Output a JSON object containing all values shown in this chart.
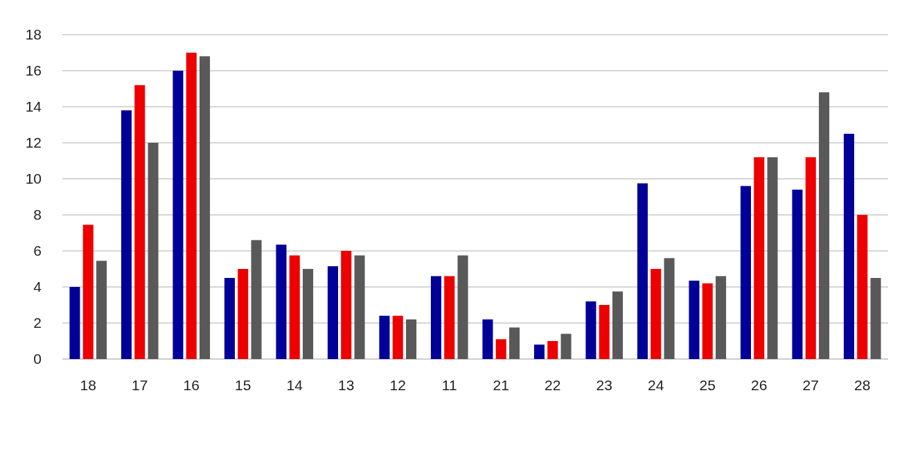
{
  "chart_data": {
    "type": "bar",
    "categories": [
      "18",
      "17",
      "16",
      "15",
      "14",
      "13",
      "12",
      "11",
      "21",
      "22",
      "23",
      "24",
      "25",
      "26",
      "27",
      "28"
    ],
    "series": [
      {
        "color": "#000099",
        "values": [
          4.0,
          13.8,
          16.0,
          4.5,
          6.35,
          5.15,
          2.4,
          4.6,
          2.2,
          0.8,
          3.2,
          9.75,
          4.35,
          9.6,
          9.4,
          12.5
        ]
      },
      {
        "color": "#ee0000",
        "values": [
          7.45,
          15.2,
          17.0,
          5.0,
          5.75,
          6.0,
          2.4,
          4.6,
          1.1,
          1.0,
          3.0,
          5.0,
          4.2,
          11.2,
          11.2,
          8.0
        ]
      },
      {
        "color": "#595959",
        "values": [
          5.45,
          12.0,
          16.8,
          6.6,
          5.0,
          5.75,
          2.2,
          5.75,
          1.75,
          1.4,
          3.75,
          5.6,
          4.6,
          11.2,
          14.8,
          4.5
        ]
      }
    ],
    "ylim": [
      0,
      18
    ],
    "yticks": [
      0,
      2,
      4,
      6,
      8,
      10,
      12,
      14,
      16,
      18
    ],
    "grid": "y"
  }
}
